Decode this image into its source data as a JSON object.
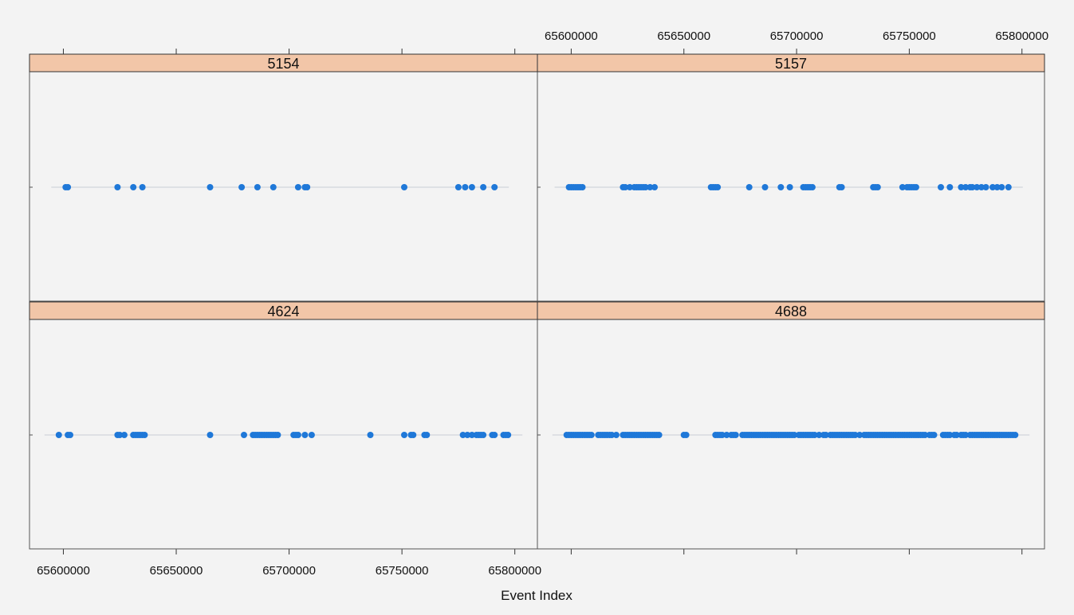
{
  "chart_data": {
    "type": "scatter",
    "xlabel": "Event Index",
    "xlim": [
      65585000,
      65810000
    ],
    "x_ticks": [
      65600000,
      65650000,
      65700000,
      65750000,
      65800000
    ],
    "x_tick_labels": [
      "65600000",
      "65650000",
      "65700000",
      "65750000",
      "65800000"
    ],
    "colors": {
      "points": "#1f78d8",
      "strip": "#f2c6a8",
      "frame": "#555555",
      "panel_bg": "#f3f3f3",
      "baseline": "#c8ccd4"
    },
    "panels": [
      {
        "label": "5154",
        "x": [
          65601000,
          65602000,
          65624000,
          65631000,
          65635000,
          65665000,
          65679000,
          65686000,
          65693000,
          65704000,
          65707000,
          65708000,
          65751000,
          65775000,
          65778000,
          65781000,
          65786000,
          65791000
        ]
      },
      {
        "label": "5157",
        "x": [
          65599000,
          65600000,
          65601000,
          65602000,
          65603000,
          65604000,
          65605000,
          65623000,
          65624000,
          65626000,
          65628000,
          65629000,
          65630000,
          65631000,
          65632000,
          65633000,
          65635000,
          65637000,
          65662000,
          65663000,
          65664000,
          65665000,
          65679000,
          65686000,
          65693000,
          65697000,
          65703000,
          65704000,
          65705000,
          65706000,
          65707000,
          65719000,
          65720000,
          65734000,
          65735000,
          65736000,
          65747000,
          65749000,
          65750000,
          65751000,
          65752000,
          65753000,
          65764000,
          65768000,
          65773000,
          65775000,
          65777000,
          65778000,
          65780000,
          65782000,
          65784000,
          65787000,
          65789000,
          65791000,
          65794000
        ]
      },
      {
        "label": "4624",
        "x": [
          65598000,
          65602000,
          65603000,
          65624000,
          65625000,
          65627000,
          65631000,
          65632000,
          65633000,
          65634000,
          65635000,
          65636000,
          65665000,
          65680000,
          65684000,
          65685000,
          65686000,
          65687000,
          65688000,
          65689000,
          65690000,
          65691000,
          65692000,
          65693000,
          65694000,
          65695000,
          65702000,
          65703000,
          65704000,
          65707000,
          65710000,
          65736000,
          65751000,
          65754000,
          65755000,
          65760000,
          65761000,
          65777000,
          65779000,
          65781000,
          65783000,
          65784000,
          65785000,
          65786000,
          65790000,
          65791000,
          65795000,
          65796000,
          65797000
        ]
      },
      {
        "label": "4688",
        "x": [
          65598000,
          65599000,
          65600000,
          65601000,
          65602000,
          65603000,
          65604000,
          65605000,
          65606000,
          65607000,
          65608000,
          65609000,
          65612000,
          65613000,
          65614000,
          65615000,
          65616000,
          65617000,
          65618000,
          65620000,
          65623000,
          65624000,
          65625000,
          65626000,
          65627000,
          65628000,
          65629000,
          65630000,
          65631000,
          65632000,
          65633000,
          65634000,
          65635000,
          65636000,
          65637000,
          65638000,
          65639000,
          65650000,
          65651000,
          65664000,
          65665000,
          65666000,
          65667000,
          65669000,
          65671000,
          65672000,
          65673000,
          65676000,
          65677000,
          65678000,
          65679000,
          65680000,
          65681000,
          65682000,
          65683000,
          65684000,
          65685000,
          65686000,
          65687000,
          65688000,
          65689000,
          65690000,
          65691000,
          65692000,
          65693000,
          65694000,
          65695000,
          65696000,
          65697000,
          65698000,
          65699000,
          65701000,
          65702000,
          65703000,
          65704000,
          65705000,
          65706000,
          65707000,
          65708000,
          65710000,
          65712000,
          65713000,
          65715000,
          65716000,
          65717000,
          65718000,
          65719000,
          65720000,
          65721000,
          65722000,
          65723000,
          65724000,
          65725000,
          65726000,
          65728000,
          65730000,
          65731000,
          65732000,
          65733000,
          65734000,
          65735000,
          65736000,
          65737000,
          65738000,
          65739000,
          65740000,
          65741000,
          65742000,
          65743000,
          65744000,
          65745000,
          65746000,
          65747000,
          65748000,
          65749000,
          65750000,
          65751000,
          65752000,
          65753000,
          65754000,
          65755000,
          65756000,
          65757000,
          65759000,
          65760000,
          65761000,
          65765000,
          65766000,
          65767000,
          65768000,
          65770000,
          65771000,
          65773000,
          65774000,
          65775000,
          65777000,
          65778000,
          65779000,
          65780000,
          65781000,
          65782000,
          65783000,
          65784000,
          65785000,
          65786000,
          65787000,
          65788000,
          65789000,
          65790000,
          65791000,
          65792000,
          65793000,
          65794000,
          65795000,
          65796000,
          65797000
        ]
      }
    ]
  }
}
